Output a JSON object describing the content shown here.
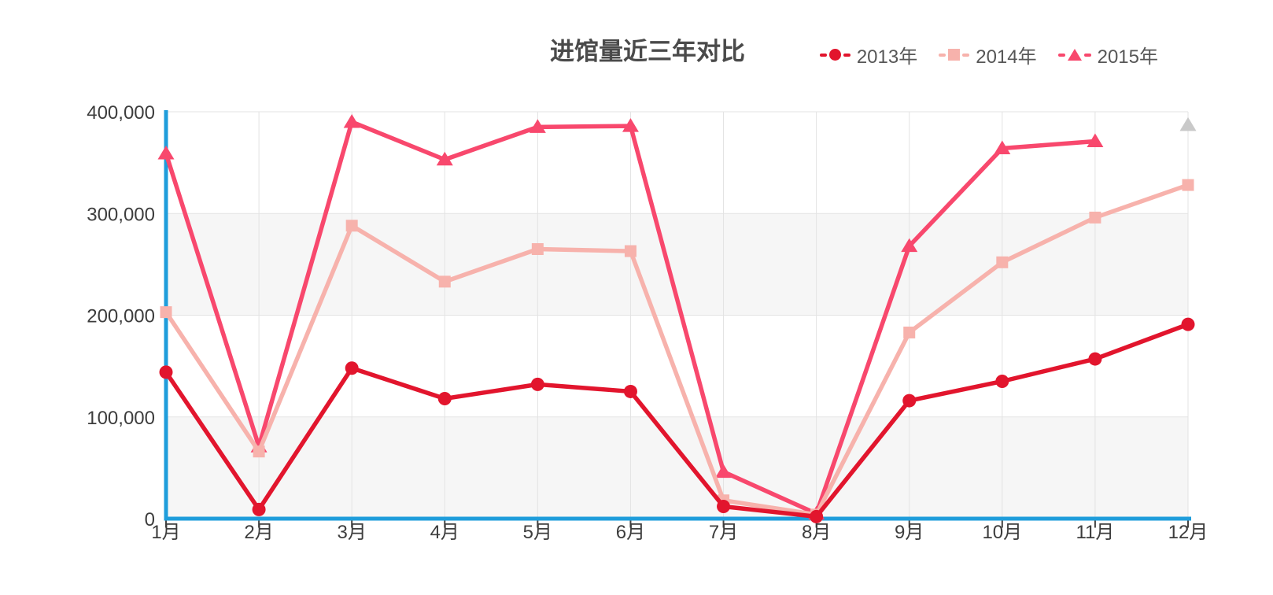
{
  "chart_data": {
    "type": "line",
    "title": "进馆量近三年对比",
    "categories": [
      "1月",
      "2月",
      "3月",
      "4月",
      "5月",
      "6月",
      "7月",
      "8月",
      "9月",
      "10月",
      "11月",
      "12月"
    ],
    "y_tick_labels": [
      "0",
      "100,000",
      "200,000",
      "300,000",
      "400,000"
    ],
    "y_tick_values": [
      0,
      100000,
      200000,
      300000,
      400000
    ],
    "ylim": [
      0,
      400000
    ],
    "grid": true,
    "legend_position": "top-right",
    "axis_color": "#1f9ddb",
    "gridline_color": "#e3e3e3",
    "band_colors": [
      "#f6f6f6",
      "#ffffff"
    ],
    "tick_color": "#444444",
    "series": [
      {
        "name": "2013年",
        "color": "#e2152d",
        "marker": "circle",
        "values": [
          144000,
          9000,
          148000,
          118000,
          132000,
          125000,
          12000,
          2000,
          116000,
          135000,
          157000,
          191000
        ]
      },
      {
        "name": "2014年",
        "color": "#f7b2ac",
        "marker": "square",
        "values": [
          203000,
          66000,
          288000,
          233000,
          265000,
          263000,
          18000,
          4000,
          183000,
          252000,
          296000,
          328000
        ]
      },
      {
        "name": "2015年",
        "color": "#f8486d",
        "marker": "triangle",
        "values": [
          359000,
          71000,
          390000,
          353000,
          385000,
          386000,
          46000,
          5000,
          268000,
          364000,
          371000,
          null
        ]
      }
    ],
    "detached_point": {
      "series": "2015年",
      "category": "12月",
      "value": 387000,
      "color": "#c9c9c9",
      "marker": "triangle"
    }
  }
}
